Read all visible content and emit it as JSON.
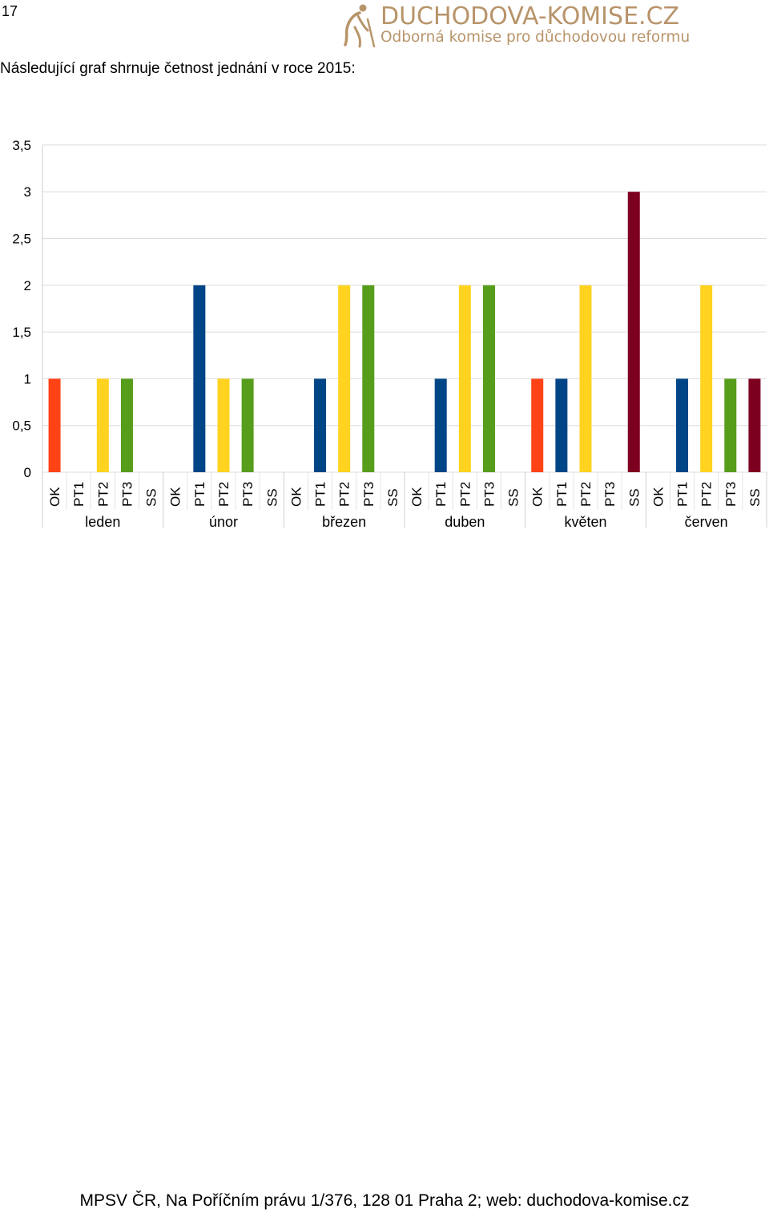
{
  "page": {
    "number": "17",
    "intro": "Následující graf shrnuje četnost jednání v roce 2015:",
    "footer": "MPSV ČR, Na Poříčním právu 1/376, 128 01 Praha 2; web: duchodova-komise.cz"
  },
  "logo": {
    "title": "DUCHODOVA-KOMISE.CZ",
    "subtitle": "Odborná komise pro důchodovou reformu",
    "icon": "elder-walking-icon",
    "color": "#b8946a"
  },
  "chart_data": {
    "type": "bar",
    "ylim": [
      0,
      3.5
    ],
    "yticks": [
      "0",
      "0,5",
      "1",
      "1,5",
      "2",
      "2,5",
      "3",
      "3,5"
    ],
    "grid": true,
    "groups": [
      "leden",
      "únor",
      "březen",
      "duben",
      "květen",
      "červen"
    ],
    "subcategories": [
      "OK",
      "PT1",
      "PT2",
      "PT3",
      "SS"
    ],
    "colors": {
      "OK": "#ff4316",
      "PT1": "#004586",
      "PT2": "#ffd320",
      "PT3": "#579d1c",
      "SS": "#7e0021"
    },
    "values": [
      [
        1,
        0,
        1,
        1,
        0
      ],
      [
        0,
        2,
        1,
        1,
        0
      ],
      [
        0,
        1,
        2,
        2,
        0
      ],
      [
        0,
        1,
        2,
        2,
        0
      ],
      [
        1,
        1,
        2,
        0,
        3
      ],
      [
        0,
        1,
        2,
        1,
        1
      ]
    ]
  }
}
